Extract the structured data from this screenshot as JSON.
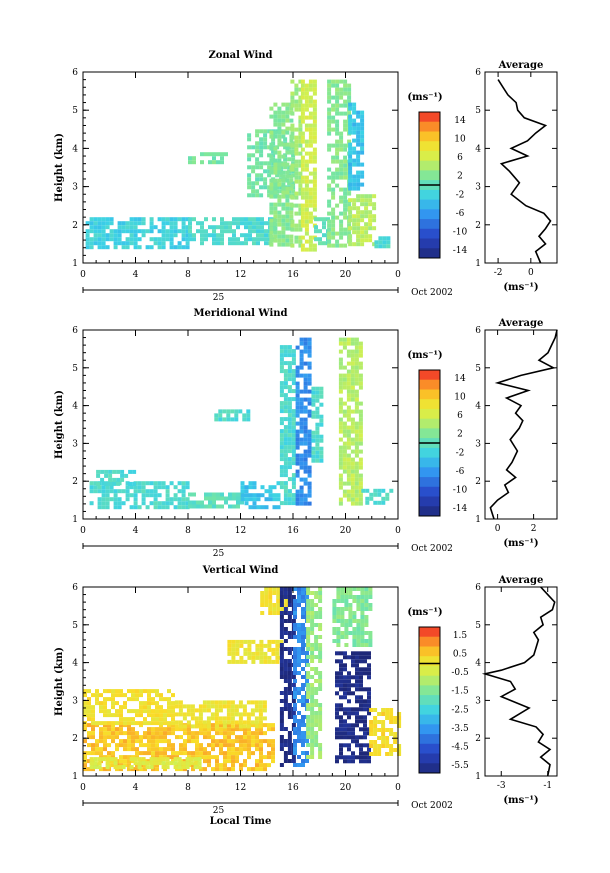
{
  "chart_data": [
    {
      "type": "heatmap",
      "title": "Zonal Wind",
      "ylabel": "Height (km)",
      "yticks": [
        "1",
        "2",
        "3",
        "4",
        "5",
        "6"
      ],
      "ylim": [
        1,
        6
      ],
      "xticks": [
        "0",
        "4",
        "8",
        "12",
        "16",
        "20",
        "0"
      ],
      "xlim": [
        0,
        24
      ],
      "date_label": "25",
      "month_label": "Oct 2002",
      "xlabel": "",
      "colorbar": {
        "unit": "(ms⁻¹)",
        "ticks": [
          "14",
          "10",
          "6",
          "2",
          "-2",
          "-6",
          "-10",
          "-14"
        ],
        "range": [
          -14,
          14
        ]
      },
      "color_regions": [
        {
          "t": [
            0.2,
            8.0
          ],
          "h": [
            1.45,
            2.2
          ],
          "value": -2
        },
        {
          "t": [
            8.0,
            14.5
          ],
          "h": [
            1.5,
            2.2
          ],
          "value": -1
        },
        {
          "t": [
            8.0,
            11.0
          ],
          "h": [
            3.6,
            3.9
          ],
          "value": 1
        },
        {
          "t": [
            12.5,
            16.0
          ],
          "h": [
            2.8,
            4.5
          ],
          "value": 1
        },
        {
          "t": [
            14.2,
            15.8
          ],
          "h": [
            1.5,
            5.2
          ],
          "value": 2
        },
        {
          "t": [
            15.8,
            16.6
          ],
          "h": [
            1.5,
            5.8
          ],
          "value": 3
        },
        {
          "t": [
            16.6,
            17.6
          ],
          "h": [
            1.4,
            5.8
          ],
          "value": 5
        },
        {
          "t": [
            17.6,
            18.6
          ],
          "h": [
            1.5,
            2.2
          ],
          "value": 0
        },
        {
          "t": [
            18.6,
            20.2
          ],
          "h": [
            1.45,
            5.8
          ],
          "value": 2
        },
        {
          "t": [
            20.2,
            21.2
          ],
          "h": [
            3.0,
            5.2
          ],
          "value": -3
        },
        {
          "t": [
            20.2,
            22.2
          ],
          "h": [
            1.45,
            2.8
          ],
          "value": 4
        },
        {
          "t": [
            22.2,
            23.2
          ],
          "h": [
            1.45,
            1.7
          ],
          "value": -1
        }
      ],
      "average": {
        "title": "Average",
        "xlabel": "(ms⁻¹)",
        "xticks": [
          "-2",
          "0"
        ],
        "xlim": [
          -2.8,
          1.6
        ],
        "h": [
          1.0,
          1.3,
          1.5,
          1.7,
          1.9,
          2.1,
          2.3,
          2.5,
          2.8,
          3.1,
          3.4,
          3.6,
          3.8,
          4.0,
          4.2,
          4.4,
          4.6,
          4.8,
          5.0,
          5.2,
          5.4,
          5.6,
          5.8
        ],
        "v": [
          0.6,
          0.3,
          0.9,
          0.5,
          0.9,
          1.2,
          0.8,
          -0.3,
          -1.2,
          -0.7,
          -1.3,
          -1.8,
          -0.2,
          -1.2,
          -0.2,
          0.3,
          0.9,
          -0.4,
          -0.8,
          -0.9,
          -1.4,
          -1.7,
          -2.0
        ]
      }
    },
    {
      "type": "heatmap",
      "title": "Meridional Wind",
      "ylabel": "Height (km)",
      "yticks": [
        "1",
        "2",
        "3",
        "4",
        "5",
        "6"
      ],
      "ylim": [
        1,
        6
      ],
      "xticks": [
        "0",
        "4",
        "8",
        "12",
        "16",
        "20",
        "0"
      ],
      "xlim": [
        0,
        24
      ],
      "date_label": "25",
      "month_label": "Oct 2002",
      "xlabel": "",
      "colorbar": {
        "unit": "(ms⁻¹)",
        "ticks": [
          "14",
          "10",
          "6",
          "2",
          "-2",
          "-6",
          "-10",
          "-14"
        ],
        "range": [
          -14,
          14
        ]
      },
      "color_regions": [
        {
          "t": [
            0.5,
            8.0
          ],
          "h": [
            1.3,
            2.0
          ],
          "value": -1
        },
        {
          "t": [
            1.0,
            4.0
          ],
          "h": [
            1.9,
            2.3
          ],
          "value": -1
        },
        {
          "t": [
            8.0,
            12.0
          ],
          "h": [
            1.3,
            1.7
          ],
          "value": 0
        },
        {
          "t": [
            12.0,
            15.0
          ],
          "h": [
            1.3,
            2.0
          ],
          "value": -3
        },
        {
          "t": [
            10.0,
            12.5
          ],
          "h": [
            3.6,
            3.9
          ],
          "value": -1
        },
        {
          "t": [
            15.0,
            16.2
          ],
          "h": [
            1.4,
            5.6
          ],
          "value": -1
        },
        {
          "t": [
            16.2,
            17.4
          ],
          "h": [
            1.4,
            5.8
          ],
          "value": -6
        },
        {
          "t": [
            17.4,
            18.2
          ],
          "h": [
            2.5,
            4.5
          ],
          "value": -1
        },
        {
          "t": [
            19.5,
            21.2
          ],
          "h": [
            1.4,
            5.8
          ],
          "value": 4
        },
        {
          "t": [
            21.2,
            23.5
          ],
          "h": [
            1.4,
            1.8
          ],
          "value": -1
        }
      ],
      "average": {
        "title": "Average",
        "xlabel": "(ms⁻¹)",
        "xticks": [
          "0",
          "2"
        ],
        "xlim": [
          -0.7,
          3.3
        ],
        "h": [
          1.0,
          1.3,
          1.5,
          1.7,
          1.9,
          2.1,
          2.3,
          2.5,
          2.8,
          3.1,
          3.4,
          3.6,
          3.8,
          4.0,
          4.2,
          4.4,
          4.6,
          4.8,
          5.0,
          5.2,
          5.4,
          5.6,
          5.8,
          6.0
        ],
        "v": [
          -0.2,
          -0.4,
          0.0,
          0.6,
          0.4,
          1.0,
          0.5,
          0.8,
          1.1,
          0.7,
          1.2,
          1.4,
          1.0,
          1.3,
          0.5,
          1.7,
          0.0,
          1.3,
          3.1,
          2.3,
          2.8,
          3.0,
          3.2,
          3.3
        ]
      }
    },
    {
      "type": "heatmap",
      "title": "Vertical Wind",
      "ylabel": "Height (km)",
      "yticks": [
        "1",
        "2",
        "3",
        "4",
        "5",
        "6"
      ],
      "ylim": [
        1,
        6
      ],
      "xticks": [
        "0",
        "4",
        "8",
        "12",
        "16",
        "20",
        "0"
      ],
      "xlim": [
        0,
        24
      ],
      "date_label": "25",
      "month_label": "Oct 2002",
      "xlabel": "Local Time",
      "colorbar": {
        "unit": "(ms⁻¹)",
        "ticks": [
          "1.5",
          "0.5",
          "-0.5",
          "-1.5",
          "-2.5",
          "-3.5",
          "-4.5",
          "-5.5"
        ],
        "range": [
          -6,
          2
        ]
      },
      "color_regions": [
        {
          "t": [
            0.0,
            14.5
          ],
          "h": [
            1.2,
            2.4
          ],
          "value": 0.6
        },
        {
          "t": [
            0.0,
            7.0
          ],
          "h": [
            2.4,
            3.3
          ],
          "value": 0.2
        },
        {
          "t": [
            0.5,
            9.0
          ],
          "h": [
            1.2,
            1.5
          ],
          "value": -0.3
        },
        {
          "t": [
            7.0,
            14.0
          ],
          "h": [
            2.3,
            3.0
          ],
          "value": 0.1
        },
        {
          "t": [
            11.0,
            15.0
          ],
          "h": [
            4.0,
            4.6
          ],
          "value": 0.1
        },
        {
          "t": [
            13.5,
            15.5
          ],
          "h": [
            5.3,
            6.0
          ],
          "value": 0.2
        },
        {
          "t": [
            15.0,
            16.0
          ],
          "h": [
            1.3,
            6.0
          ],
          "value": -5.8
        },
        {
          "t": [
            16.0,
            17.0
          ],
          "h": [
            1.3,
            6.0
          ],
          "value": -3.8
        },
        {
          "t": [
            17.0,
            18.0
          ],
          "h": [
            1.5,
            6.0
          ],
          "value": -1.2
        },
        {
          "t": [
            19.0,
            22.0
          ],
          "h": [
            4.5,
            6.0
          ],
          "value": -1.5
        },
        {
          "t": [
            19.2,
            21.8
          ],
          "h": [
            1.4,
            4.3
          ],
          "value": -5.8
        },
        {
          "t": [
            21.8,
            24.0
          ],
          "h": [
            1.6,
            2.8
          ],
          "value": 0.3
        }
      ],
      "average": {
        "title": "Average",
        "xlabel": "(ms⁻¹)",
        "xticks": [
          "-3",
          "-1"
        ],
        "xlim": [
          -3.7,
          -0.6
        ],
        "h": [
          1.0,
          1.3,
          1.5,
          1.7,
          1.9,
          2.1,
          2.3,
          2.5,
          2.8,
          3.1,
          3.3,
          3.5,
          3.7,
          3.8,
          4.0,
          4.2,
          4.4,
          4.6,
          4.8,
          5.0,
          5.2,
          5.4,
          5.6,
          5.8,
          6.0
        ],
        "v": [
          -1.0,
          -0.9,
          -1.3,
          -0.9,
          -1.4,
          -1.2,
          -1.5,
          -2.6,
          -1.8,
          -3.0,
          -2.4,
          -2.6,
          -3.7,
          -3.0,
          -2.0,
          -1.6,
          -1.5,
          -1.4,
          -1.6,
          -1.2,
          -1.3,
          -0.8,
          -0.7,
          -1.0,
          -1.3
        ]
      }
    }
  ]
}
